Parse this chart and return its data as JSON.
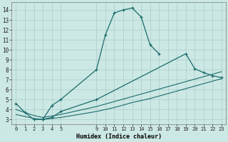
{
  "title": "",
  "xlabel": "Humidex (Indice chaleur)",
  "bg_color": "#cce8e4",
  "grid_color": "#aaccca",
  "line_color": "#1a6b6b",
  "xlim": [
    -0.5,
    23.5
  ],
  "ylim": [
    2.5,
    14.8
  ],
  "xticks": [
    0,
    1,
    2,
    3,
    4,
    5,
    9,
    10,
    11,
    12,
    13,
    14,
    15,
    16,
    17,
    18,
    19,
    20,
    21,
    22,
    23
  ],
  "yticks": [
    3,
    4,
    5,
    6,
    7,
    8,
    9,
    10,
    11,
    12,
    13,
    14
  ],
  "line_peak": {
    "x": [
      0,
      1,
      2,
      3,
      4,
      5,
      9,
      10,
      11,
      12,
      13,
      14,
      15,
      16
    ],
    "y": [
      4.6,
      3.7,
      3.0,
      3.0,
      4.4,
      5.0,
      8.0,
      11.5,
      13.7,
      14.0,
      14.2,
      13.3,
      10.5,
      9.6
    ]
  },
  "line_second": {
    "x": [
      3,
      4,
      5,
      9,
      19,
      20,
      21,
      22,
      23
    ],
    "y": [
      3.0,
      3.2,
      3.8,
      5.0,
      9.6,
      8.1,
      7.7,
      7.4,
      7.2
    ]
  },
  "line_upper": {
    "x": [
      0,
      1,
      2,
      3,
      4,
      5,
      9,
      10,
      11,
      12,
      13,
      14,
      15,
      16,
      17,
      18,
      19,
      20,
      21,
      22,
      23
    ],
    "y": [
      4.0,
      3.7,
      3.4,
      3.2,
      3.35,
      3.5,
      4.3,
      4.55,
      4.8,
      5.05,
      5.3,
      5.55,
      5.8,
      6.05,
      6.3,
      6.55,
      6.8,
      7.05,
      7.3,
      7.55,
      7.8
    ]
  },
  "line_lower": {
    "x": [
      0,
      1,
      2,
      3,
      4,
      5,
      9,
      10,
      11,
      12,
      13,
      14,
      15,
      16,
      17,
      18,
      19,
      20,
      21,
      22,
      23
    ],
    "y": [
      3.5,
      3.3,
      3.1,
      3.0,
      3.1,
      3.2,
      3.8,
      4.0,
      4.2,
      4.45,
      4.7,
      4.9,
      5.1,
      5.35,
      5.6,
      5.85,
      6.1,
      6.35,
      6.6,
      6.85,
      7.1
    ]
  }
}
